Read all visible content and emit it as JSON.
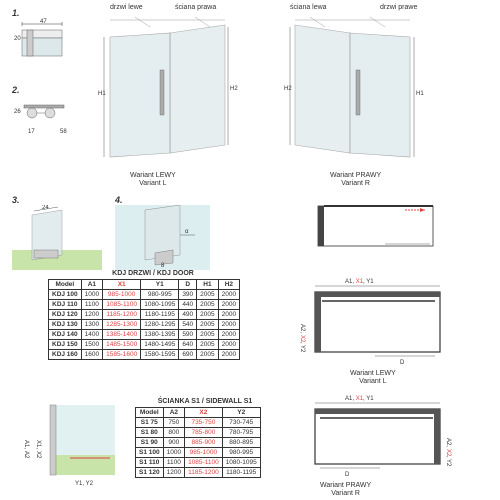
{
  "labels": {
    "drzwi_lewe": "drzwi lewe",
    "sciana_prawa": "ściana prawa",
    "sciana_lewa": "ściana lewa",
    "drzwi_prawe": "drzwi prawe",
    "wariant_lewy_1": "Wariant LEWY",
    "variant_l": "Variant L",
    "wariant_prawy_1": "Wariant PRAWY",
    "variant_r": "Variant R"
  },
  "nums": {
    "n1": "1.",
    "n2": "2.",
    "n3": "3.",
    "n4": "4."
  },
  "dims": {
    "d1_47": "47",
    "d1_20": "20",
    "d2_26": "26",
    "d2_17": "17",
    "d2_58": "58",
    "d3_24": "24",
    "d4_8": "8",
    "d4_ang": "α"
  },
  "h_labels": {
    "h1": "H1",
    "h2": "H2",
    "a1": "A1",
    "a2": "A2",
    "x1": "X1",
    "x2": "X2",
    "y1": "Y1",
    "y2": "Y2",
    "d": "D"
  },
  "kdj_table": {
    "title": "KDJ DRZWI / KDJ DOOR",
    "cols": [
      "Model",
      "A1",
      "X1",
      "Y1",
      "D",
      "H1",
      "H2"
    ],
    "rows": [
      [
        "KDJ 100",
        "1000",
        "985-1000",
        "980-995",
        "390",
        "2005",
        "2000"
      ],
      [
        "KDJ 110",
        "1100",
        "1085-1100",
        "1080-1095",
        "440",
        "2005",
        "2000"
      ],
      [
        "KDJ 120",
        "1200",
        "1185-1200",
        "1180-1195",
        "490",
        "2005",
        "2000"
      ],
      [
        "KDJ 130",
        "1300",
        "1285-1300",
        "1280-1295",
        "540",
        "2005",
        "2000"
      ],
      [
        "KDJ 140",
        "1400",
        "1385-1400",
        "1380-1395",
        "590",
        "2005",
        "2000"
      ],
      [
        "KDJ 150",
        "1500",
        "1485-1500",
        "1480-1495",
        "640",
        "2005",
        "2000"
      ],
      [
        "KDJ 160",
        "1600",
        "1585-1600",
        "1580-1595",
        "690",
        "2005",
        "2000"
      ]
    ]
  },
  "s1_table": {
    "title": "ŚCIANKA S1 / SIDEWALL S1",
    "cols": [
      "Model",
      "A2",
      "X2",
      "Y2"
    ],
    "rows": [
      [
        "S1 75",
        "750",
        "735-750",
        "730-745"
      ],
      [
        "S1 80",
        "800",
        "785-800",
        "780-795"
      ],
      [
        "S1 90",
        "900",
        "885-900",
        "880-895"
      ],
      [
        "S1 100",
        "1000",
        "985-1000",
        "980-995"
      ],
      [
        "S1 110",
        "1100",
        "1085-1100",
        "1080-1095"
      ],
      [
        "S1 120",
        "1200",
        "1185-1200",
        "1180-1195"
      ]
    ]
  },
  "colors": {
    "glass": "#dce8ea",
    "water": "#a8d4d8",
    "wall": "#c8e4a8",
    "red": "#d44"
  }
}
